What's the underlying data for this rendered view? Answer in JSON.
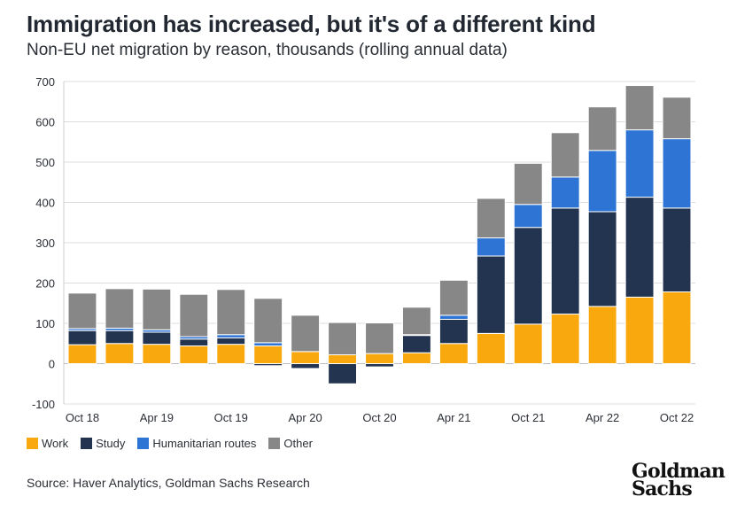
{
  "header": {
    "title": "Immigration has increased, but it's of a different kind",
    "subtitle": "Non-EU net migration by reason, thousands (rolling annual data)"
  },
  "chart_data": {
    "type": "bar",
    "stacked": true,
    "title": "",
    "xlabel": "",
    "ylabel": "",
    "ylim": [
      -100,
      700
    ],
    "yticks": [
      -100,
      0,
      100,
      200,
      300,
      400,
      500,
      600,
      700
    ],
    "grid": true,
    "legend_position": "bottom-left",
    "categories": [
      "Oct 18",
      "Jan 19",
      "Apr 19",
      "Jul 19",
      "Oct 19",
      "Jan 20",
      "Apr 20",
      "Jul 20",
      "Oct 20",
      "Jan 21",
      "Apr 21",
      "Jul 21",
      "Oct 21",
      "Jan 22",
      "Apr 22",
      "Jul 22",
      "Oct 22"
    ],
    "tick_labels": [
      "Oct 18",
      "Apr 19",
      "Oct 19",
      "Apr 20",
      "Oct 20",
      "Apr 21",
      "Oct 21",
      "Apr 22",
      "Oct 22"
    ],
    "tick_indices": [
      0,
      2,
      4,
      6,
      8,
      10,
      12,
      14,
      16
    ],
    "series": [
      {
        "name": "Work",
        "color": "#F9A80D",
        "values": [
          47,
          50,
          48,
          44,
          48,
          44,
          30,
          22,
          25,
          27,
          50,
          75,
          98,
          123,
          142,
          165,
          178
        ]
      },
      {
        "name": "Study",
        "color": "#22344F",
        "values": [
          35,
          32,
          30,
          17,
          16,
          -5,
          -12,
          -50,
          -8,
          43,
          60,
          192,
          240,
          263,
          235,
          248,
          208
        ]
      },
      {
        "name": "Humanitarian routes",
        "color": "#2D74D4",
        "values": [
          5,
          6,
          6,
          6,
          8,
          8,
          0,
          0,
          0,
          2,
          10,
          45,
          57,
          77,
          152,
          167,
          172
        ]
      },
      {
        "name": "Other",
        "color": "#878787",
        "values": [
          88,
          98,
          101,
          105,
          112,
          110,
          90,
          80,
          76,
          68,
          87,
          98,
          102,
          110,
          108,
          110,
          103
        ]
      }
    ]
  },
  "legend": {
    "items": [
      {
        "label": "Work",
        "color": "#F9A80D"
      },
      {
        "label": "Study",
        "color": "#22344F"
      },
      {
        "label": "Humanitarian routes",
        "color": "#2D74D4"
      },
      {
        "label": "Other",
        "color": "#878787"
      }
    ]
  },
  "footer": {
    "source": "Source: Haver Analytics, Goldman Sachs Research",
    "logo_line1": "Goldman",
    "logo_line2": "Sachs"
  }
}
